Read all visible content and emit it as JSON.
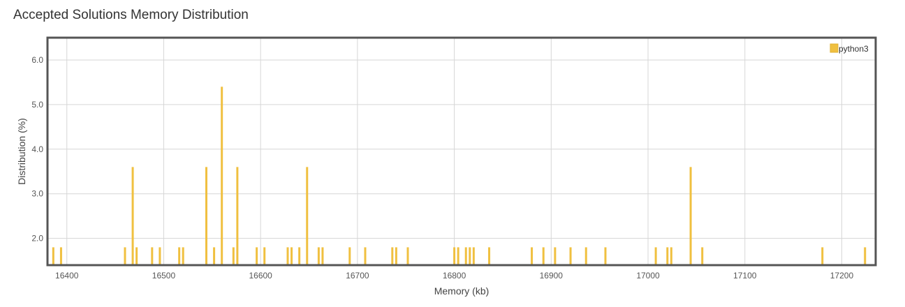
{
  "chart_data": {
    "type": "bar",
    "title": "Accepted Solutions Memory Distribution",
    "xlabel": "Memory (kb)",
    "ylabel": "Distribution (%)",
    "xlim": [
      16380,
      17235
    ],
    "ylim": [
      1.4,
      6.5
    ],
    "xticks": [
      16400,
      16500,
      16600,
      16700,
      16800,
      16900,
      17000,
      17100,
      17200
    ],
    "yticks": [
      2.0,
      3.0,
      4.0,
      5.0,
      6.0
    ],
    "grid": true,
    "legend_position": "top-right",
    "series": [
      {
        "name": "python3",
        "color": "#f0c040",
        "x": [
          16386,
          16394,
          16460,
          16468,
          16472,
          16488,
          16496,
          16516,
          16520,
          16544,
          16552,
          16560,
          16572,
          16576,
          16596,
          16604,
          16628,
          16632,
          16640,
          16648,
          16660,
          16664,
          16692,
          16708,
          16736,
          16740,
          16752,
          16800,
          16804,
          16812,
          16816,
          16820,
          16836,
          16880,
          16892,
          16904,
          16920,
          16936,
          16956,
          17008,
          17020,
          17024,
          17044,
          17056,
          17180,
          17224
        ],
        "values": [
          1.8,
          1.8,
          1.8,
          3.6,
          1.8,
          1.8,
          1.8,
          1.8,
          1.8,
          3.6,
          1.8,
          5.4,
          1.8,
          3.6,
          1.8,
          1.8,
          1.8,
          1.8,
          1.8,
          3.6,
          1.8,
          1.8,
          1.8,
          1.8,
          1.8,
          1.8,
          1.8,
          1.8,
          1.8,
          1.8,
          1.8,
          1.8,
          1.8,
          1.8,
          1.8,
          1.8,
          1.8,
          1.8,
          1.8,
          1.8,
          1.8,
          1.8,
          3.6,
          1.8,
          1.8,
          1.8
        ]
      }
    ]
  }
}
